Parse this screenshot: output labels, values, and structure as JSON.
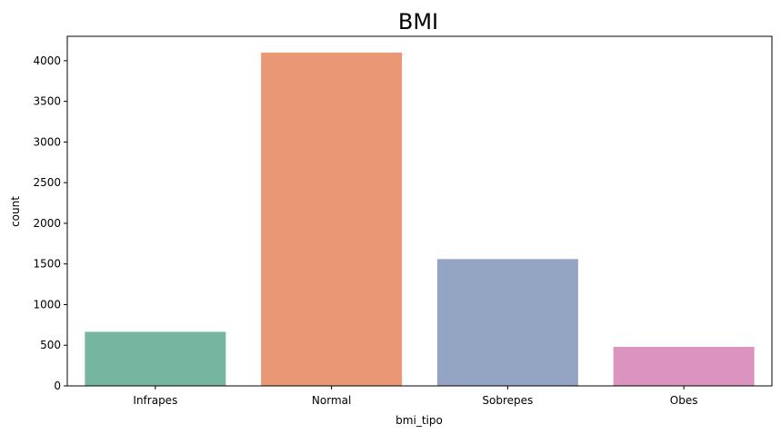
{
  "chart_data": {
    "type": "bar",
    "title": "BMI",
    "xlabel": "bmi_tipo",
    "ylabel": "count",
    "categories": [
      "Infrapes",
      "Normal",
      "Sobrepes",
      "Obes"
    ],
    "values": [
      665,
      4100,
      1560,
      480
    ],
    "colors": [
      "#76b59f",
      "#e99775",
      "#94a4c3",
      "#db94c0"
    ],
    "ylim": [
      0,
      4300
    ],
    "yticks": [
      0,
      500,
      1000,
      1500,
      2000,
      2500,
      3000,
      3500,
      4000
    ],
    "grid": false,
    "legend": "none"
  }
}
